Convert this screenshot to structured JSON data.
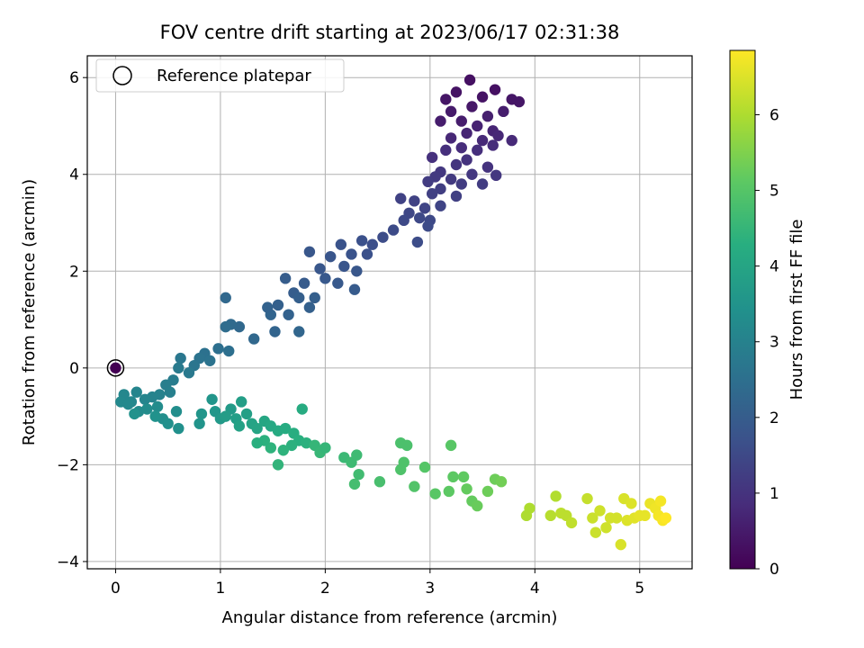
{
  "chart_data": {
    "type": "scatter",
    "title": "FOV centre drift starting at 2023/06/17 02:31:38",
    "xlabel": "Angular distance from reference (arcmin)",
    "ylabel": "Rotation from reference (arcmin)",
    "colorbar_label": "Hours from first FF file",
    "xlim": [
      -0.27,
      5.5
    ],
    "ylim": [
      -4.15,
      6.45
    ],
    "xticks": [
      0,
      1,
      2,
      3,
      4,
      5
    ],
    "yticks": [
      -4,
      -2,
      0,
      2,
      4,
      6
    ],
    "colorbar_ticks": [
      0,
      1,
      2,
      3,
      4,
      5,
      6
    ],
    "colorbar_range": [
      0,
      6.85
    ],
    "colormap": "viridis",
    "grid": true,
    "legend": {
      "placement": "top-left",
      "entries": [
        {
          "label": "Reference platepar",
          "marker": "open-circle"
        }
      ]
    },
    "reference_point": {
      "x": 0,
      "y": 0
    },
    "series": [
      {
        "points": [
          {
            "x": 3.38,
            "y": 5.95,
            "h": 0.3
          },
          {
            "x": 3.62,
            "y": 5.75,
            "h": 0.3
          },
          {
            "x": 3.78,
            "y": 5.55,
            "h": 0.4
          },
          {
            "x": 3.85,
            "y": 5.5,
            "h": 0.4
          },
          {
            "x": 3.15,
            "y": 5.55,
            "h": 0.4
          },
          {
            "x": 3.25,
            "y": 5.7,
            "h": 0.35
          },
          {
            "x": 3.5,
            "y": 5.6,
            "h": 0.35
          },
          {
            "x": 3.4,
            "y": 5.4,
            "h": 0.45
          },
          {
            "x": 3.2,
            "y": 5.3,
            "h": 0.5
          },
          {
            "x": 3.3,
            "y": 5.1,
            "h": 0.55
          },
          {
            "x": 3.1,
            "y": 5.1,
            "h": 0.55
          },
          {
            "x": 3.55,
            "y": 5.2,
            "h": 0.6
          },
          {
            "x": 3.7,
            "y": 5.3,
            "h": 0.55
          },
          {
            "x": 3.45,
            "y": 5.0,
            "h": 0.65
          },
          {
            "x": 3.6,
            "y": 4.9,
            "h": 0.7
          },
          {
            "x": 3.35,
            "y": 4.85,
            "h": 0.7
          },
          {
            "x": 3.2,
            "y": 4.75,
            "h": 0.75
          },
          {
            "x": 3.5,
            "y": 4.7,
            "h": 0.8
          },
          {
            "x": 3.65,
            "y": 4.8,
            "h": 0.75
          },
          {
            "x": 3.78,
            "y": 4.7,
            "h": 0.8
          },
          {
            "x": 3.3,
            "y": 4.55,
            "h": 0.85
          },
          {
            "x": 3.15,
            "y": 4.5,
            "h": 0.9
          },
          {
            "x": 3.45,
            "y": 4.5,
            "h": 0.9
          },
          {
            "x": 3.6,
            "y": 4.6,
            "h": 0.85
          },
          {
            "x": 3.02,
            "y": 4.35,
            "h": 0.95
          },
          {
            "x": 3.35,
            "y": 4.3,
            "h": 1.0
          },
          {
            "x": 3.55,
            "y": 4.15,
            "h": 1.0
          },
          {
            "x": 3.25,
            "y": 4.2,
            "h": 1.05
          },
          {
            "x": 3.1,
            "y": 4.05,
            "h": 1.1
          },
          {
            "x": 3.4,
            "y": 4.0,
            "h": 1.1
          },
          {
            "x": 3.63,
            "y": 3.98,
            "h": 1.1
          },
          {
            "x": 3.2,
            "y": 3.9,
            "h": 1.15
          },
          {
            "x": 3.05,
            "y": 3.95,
            "h": 1.15
          },
          {
            "x": 2.98,
            "y": 3.85,
            "h": 1.2
          },
          {
            "x": 3.3,
            "y": 3.8,
            "h": 1.2
          },
          {
            "x": 3.5,
            "y": 3.8,
            "h": 1.2
          },
          {
            "x": 3.1,
            "y": 3.7,
            "h": 1.25
          },
          {
            "x": 3.25,
            "y": 3.55,
            "h": 1.3
          },
          {
            "x": 3.02,
            "y": 3.6,
            "h": 1.3
          },
          {
            "x": 2.85,
            "y": 3.45,
            "h": 1.35
          },
          {
            "x": 2.72,
            "y": 3.5,
            "h": 1.35
          },
          {
            "x": 2.95,
            "y": 3.3,
            "h": 1.4
          },
          {
            "x": 3.1,
            "y": 3.35,
            "h": 1.4
          },
          {
            "x": 2.8,
            "y": 3.2,
            "h": 1.45
          },
          {
            "x": 2.9,
            "y": 3.1,
            "h": 1.5
          },
          {
            "x": 2.75,
            "y": 3.05,
            "h": 1.5
          },
          {
            "x": 3.0,
            "y": 3.05,
            "h": 1.5
          },
          {
            "x": 2.65,
            "y": 2.85,
            "h": 1.55
          },
          {
            "x": 2.55,
            "y": 2.7,
            "h": 1.6
          },
          {
            "x": 2.88,
            "y": 2.6,
            "h": 1.6
          },
          {
            "x": 2.98,
            "y": 2.93,
            "h": 1.55
          },
          {
            "x": 2.45,
            "y": 2.55,
            "h": 1.65
          },
          {
            "x": 2.4,
            "y": 2.35,
            "h": 1.7
          },
          {
            "x": 2.35,
            "y": 2.63,
            "h": 1.7
          },
          {
            "x": 2.25,
            "y": 2.35,
            "h": 1.75
          },
          {
            "x": 2.15,
            "y": 2.55,
            "h": 1.75
          },
          {
            "x": 2.05,
            "y": 2.3,
            "h": 1.8
          },
          {
            "x": 2.18,
            "y": 2.1,
            "h": 1.8
          },
          {
            "x": 2.3,
            "y": 2.0,
            "h": 1.85
          },
          {
            "x": 1.95,
            "y": 2.05,
            "h": 1.85
          },
          {
            "x": 1.85,
            "y": 2.4,
            "h": 1.85
          },
          {
            "x": 2.0,
            "y": 1.85,
            "h": 1.9
          },
          {
            "x": 2.12,
            "y": 1.75,
            "h": 1.9
          },
          {
            "x": 2.28,
            "y": 1.62,
            "h": 1.95
          },
          {
            "x": 1.8,
            "y": 1.75,
            "h": 1.95
          },
          {
            "x": 1.7,
            "y": 1.55,
            "h": 2.0
          },
          {
            "x": 1.62,
            "y": 1.85,
            "h": 2.0
          },
          {
            "x": 1.75,
            "y": 1.45,
            "h": 2.05
          },
          {
            "x": 1.9,
            "y": 1.45,
            "h": 2.05
          },
          {
            "x": 1.85,
            "y": 1.25,
            "h": 2.1
          },
          {
            "x": 1.55,
            "y": 1.3,
            "h": 2.1
          },
          {
            "x": 1.65,
            "y": 1.1,
            "h": 2.15
          },
          {
            "x": 1.48,
            "y": 1.1,
            "h": 2.2
          },
          {
            "x": 1.45,
            "y": 1.25,
            "h": 2.15
          },
          {
            "x": 1.52,
            "y": 0.75,
            "h": 2.2
          },
          {
            "x": 1.75,
            "y": 0.75,
            "h": 2.25
          },
          {
            "x": 1.32,
            "y": 0.6,
            "h": 2.3
          },
          {
            "x": 1.18,
            "y": 0.85,
            "h": 2.3
          },
          {
            "x": 1.1,
            "y": 0.9,
            "h": 2.35
          },
          {
            "x": 1.05,
            "y": 1.45,
            "h": 2.3
          },
          {
            "x": 1.05,
            "y": 0.85,
            "h": 2.4
          },
          {
            "x": 0.98,
            "y": 0.4,
            "h": 2.5
          },
          {
            "x": 1.08,
            "y": 0.35,
            "h": 2.5
          },
          {
            "x": 0.85,
            "y": 0.3,
            "h": 2.55
          },
          {
            "x": 0.8,
            "y": 0.2,
            "h": 2.6
          },
          {
            "x": 0.9,
            "y": 0.15,
            "h": 2.6
          },
          {
            "x": 0.75,
            "y": 0.05,
            "h": 2.65
          },
          {
            "x": 0.62,
            "y": 0.2,
            "h": 2.7
          },
          {
            "x": 0.7,
            "y": -0.1,
            "h": 2.75
          },
          {
            "x": 0.6,
            "y": 0.0,
            "h": 2.8
          },
          {
            "x": 0.55,
            "y": -0.25,
            "h": 2.85
          },
          {
            "x": 0.48,
            "y": -0.35,
            "h": 2.9
          },
          {
            "x": 0.52,
            "y": -0.5,
            "h": 2.95
          },
          {
            "x": 0.42,
            "y": -0.55,
            "h": 3.0
          },
          {
            "x": 0.35,
            "y": -0.6,
            "h": 3.05
          },
          {
            "x": 0.28,
            "y": -0.65,
            "h": 3.1
          },
          {
            "x": 0.2,
            "y": -0.5,
            "h": 3.1
          },
          {
            "x": 0.15,
            "y": -0.7,
            "h": 3.15
          },
          {
            "x": 0.08,
            "y": -0.55,
            "h": 3.15
          },
          {
            "x": 0.05,
            "y": -0.7,
            "h": 3.2
          },
          {
            "x": 0.12,
            "y": -0.75,
            "h": 3.2
          },
          {
            "x": 0.22,
            "y": -0.9,
            "h": 3.25
          },
          {
            "x": 0.3,
            "y": -0.85,
            "h": 3.3
          },
          {
            "x": 0.4,
            "y": -0.8,
            "h": 3.3
          },
          {
            "x": 0.45,
            "y": -1.05,
            "h": 3.35
          },
          {
            "x": 0.58,
            "y": -0.9,
            "h": 3.35
          },
          {
            "x": 0.6,
            "y": -1.25,
            "h": 3.4
          },
          {
            "x": 0.5,
            "y": -1.15,
            "h": 3.4
          },
          {
            "x": 0.38,
            "y": -1.0,
            "h": 3.45
          },
          {
            "x": 0.18,
            "y": -0.95,
            "h": 3.45
          },
          {
            "x": 0.8,
            "y": -1.15,
            "h": 3.5
          },
          {
            "x": 0.82,
            "y": -0.95,
            "h": 3.55
          },
          {
            "x": 0.92,
            "y": -0.65,
            "h": 3.55
          },
          {
            "x": 0.95,
            "y": -0.9,
            "h": 3.6
          },
          {
            "x": 1.0,
            "y": -1.05,
            "h": 3.65
          },
          {
            "x": 1.1,
            "y": -0.85,
            "h": 3.7
          },
          {
            "x": 1.05,
            "y": -1.0,
            "h": 3.75
          },
          {
            "x": 1.15,
            "y": -1.05,
            "h": 3.8
          },
          {
            "x": 1.2,
            "y": -0.7,
            "h": 3.8
          },
          {
            "x": 1.25,
            "y": -0.95,
            "h": 3.85
          },
          {
            "x": 1.18,
            "y": -1.2,
            "h": 3.9
          },
          {
            "x": 1.3,
            "y": -1.15,
            "h": 3.95
          },
          {
            "x": 1.35,
            "y": -1.25,
            "h": 4.0
          },
          {
            "x": 1.42,
            "y": -1.1,
            "h": 4.05
          },
          {
            "x": 1.48,
            "y": -1.2,
            "h": 4.1
          },
          {
            "x": 1.55,
            "y": -1.3,
            "h": 4.15
          },
          {
            "x": 1.62,
            "y": -1.25,
            "h": 4.2
          },
          {
            "x": 1.7,
            "y": -1.35,
            "h": 4.25
          },
          {
            "x": 1.78,
            "y": -0.85,
            "h": 4.2
          },
          {
            "x": 1.75,
            "y": -1.5,
            "h": 4.3
          },
          {
            "x": 1.82,
            "y": -1.55,
            "h": 4.35
          },
          {
            "x": 1.68,
            "y": -1.6,
            "h": 4.35
          },
          {
            "x": 1.6,
            "y": -1.7,
            "h": 4.4
          },
          {
            "x": 1.48,
            "y": -1.65,
            "h": 4.4
          },
          {
            "x": 1.42,
            "y": -1.5,
            "h": 4.35
          },
          {
            "x": 1.35,
            "y": -1.55,
            "h": 4.3
          },
          {
            "x": 1.55,
            "y": -2.0,
            "h": 4.45
          },
          {
            "x": 1.9,
            "y": -1.6,
            "h": 4.5
          },
          {
            "x": 1.95,
            "y": -1.75,
            "h": 4.55
          },
          {
            "x": 2.0,
            "y": -1.65,
            "h": 4.5
          },
          {
            "x": 2.18,
            "y": -1.85,
            "h": 4.6
          },
          {
            "x": 2.25,
            "y": -1.95,
            "h": 4.65
          },
          {
            "x": 2.3,
            "y": -1.8,
            "h": 4.65
          },
          {
            "x": 2.32,
            "y": -2.2,
            "h": 4.7
          },
          {
            "x": 2.28,
            "y": -2.4,
            "h": 4.75
          },
          {
            "x": 2.52,
            "y": -2.35,
            "h": 4.8
          },
          {
            "x": 2.72,
            "y": -1.55,
            "h": 4.85
          },
          {
            "x": 2.78,
            "y": -1.6,
            "h": 4.85
          },
          {
            "x": 2.75,
            "y": -1.95,
            "h": 4.9
          },
          {
            "x": 2.72,
            "y": -2.1,
            "h": 4.9
          },
          {
            "x": 2.85,
            "y": -2.45,
            "h": 4.95
          },
          {
            "x": 2.95,
            "y": -2.05,
            "h": 5.0
          },
          {
            "x": 3.05,
            "y": -2.6,
            "h": 5.05
          },
          {
            "x": 3.18,
            "y": -2.55,
            "h": 5.1
          },
          {
            "x": 3.2,
            "y": -1.6,
            "h": 5.05
          },
          {
            "x": 3.22,
            "y": -2.25,
            "h": 5.1
          },
          {
            "x": 3.32,
            "y": -2.25,
            "h": 5.15
          },
          {
            "x": 3.35,
            "y": -2.5,
            "h": 5.2
          },
          {
            "x": 3.4,
            "y": -2.75,
            "h": 5.2
          },
          {
            "x": 3.45,
            "y": -2.85,
            "h": 5.25
          },
          {
            "x": 3.55,
            "y": -2.55,
            "h": 5.3
          },
          {
            "x": 3.62,
            "y": -2.3,
            "h": 5.3
          },
          {
            "x": 3.68,
            "y": -2.35,
            "h": 5.35
          },
          {
            "x": 3.92,
            "y": -3.05,
            "h": 6.0
          },
          {
            "x": 3.95,
            "y": -2.9,
            "h": 6.0
          },
          {
            "x": 4.15,
            "y": -3.05,
            "h": 6.1
          },
          {
            "x": 4.2,
            "y": -2.65,
            "h": 6.05
          },
          {
            "x": 4.25,
            "y": -3.0,
            "h": 6.15
          },
          {
            "x": 4.3,
            "y": -3.05,
            "h": 6.15
          },
          {
            "x": 4.35,
            "y": -3.2,
            "h": 6.2
          },
          {
            "x": 4.5,
            "y": -2.7,
            "h": 6.25
          },
          {
            "x": 4.55,
            "y": -3.1,
            "h": 6.3
          },
          {
            "x": 4.58,
            "y": -3.4,
            "h": 6.3
          },
          {
            "x": 4.62,
            "y": -2.95,
            "h": 6.35
          },
          {
            "x": 4.68,
            "y": -3.3,
            "h": 6.35
          },
          {
            "x": 4.72,
            "y": -3.1,
            "h": 6.4
          },
          {
            "x": 4.78,
            "y": -3.1,
            "h": 6.4
          },
          {
            "x": 4.82,
            "y": -3.65,
            "h": 6.45
          },
          {
            "x": 4.85,
            "y": -2.7,
            "h": 6.45
          },
          {
            "x": 4.88,
            "y": -3.15,
            "h": 6.5
          },
          {
            "x": 4.92,
            "y": -2.8,
            "h": 6.5
          },
          {
            "x": 4.95,
            "y": -3.1,
            "h": 6.55
          },
          {
            "x": 5.0,
            "y": -3.05,
            "h": 6.6
          },
          {
            "x": 5.05,
            "y": -3.05,
            "h": 6.6
          },
          {
            "x": 5.1,
            "y": -2.8,
            "h": 6.65
          },
          {
            "x": 5.15,
            "y": -2.9,
            "h": 6.7
          },
          {
            "x": 5.18,
            "y": -3.05,
            "h": 6.75
          },
          {
            "x": 5.2,
            "y": -2.75,
            "h": 6.75
          },
          {
            "x": 5.22,
            "y": -3.15,
            "h": 6.8
          },
          {
            "x": 5.25,
            "y": -3.1,
            "h": 6.85
          },
          {
            "x": 0.0,
            "y": 0.0,
            "h": 0.0
          }
        ]
      }
    ]
  }
}
